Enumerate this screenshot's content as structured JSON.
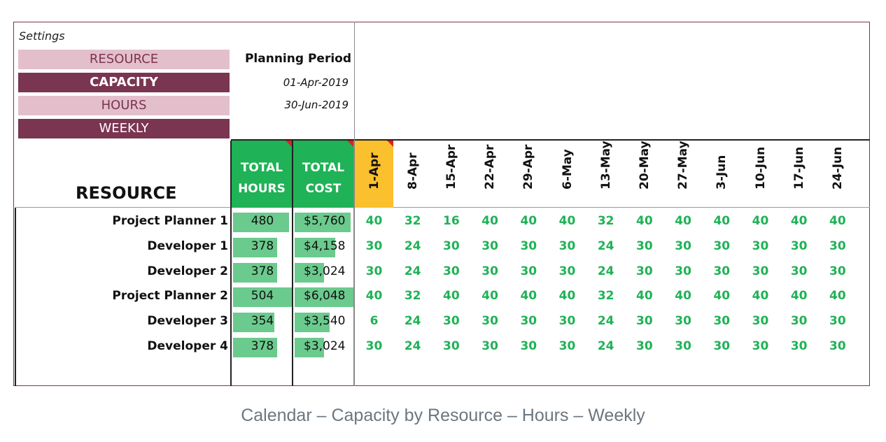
{
  "settings": {
    "label": "Settings",
    "buttons": [
      "RESOURCE",
      "CAPACITY",
      "HOURS",
      "WEEKLY"
    ]
  },
  "planning": {
    "title": "Planning Period",
    "start": "01-Apr-2019",
    "end": "30-Jun-2019"
  },
  "table": {
    "resource_header": "RESOURCE",
    "total_hours_header": [
      "TOTAL",
      "HOURS"
    ],
    "total_cost_header": [
      "TOTAL",
      "COST"
    ],
    "weeks": [
      "1-Apr",
      "8-Apr",
      "15-Apr",
      "22-Apr",
      "29-Apr",
      "6-May",
      "13-May",
      "20-May",
      "27-May",
      "3-Jun",
      "10-Jun",
      "17-Jun",
      "24-Jun"
    ],
    "rows": [
      {
        "name": "Project Planner 1",
        "hours": "480",
        "cost": "$5,760",
        "hours_frac": 0.95,
        "cost_frac": 0.95,
        "weekly": [
          "40",
          "32",
          "16",
          "40",
          "40",
          "40",
          "32",
          "40",
          "40",
          "40",
          "40",
          "40",
          "40"
        ]
      },
      {
        "name": "Developer 1",
        "hours": "378",
        "cost": "$4,158",
        "hours_frac": 0.75,
        "cost_frac": 0.69,
        "weekly": [
          "30",
          "24",
          "30",
          "30",
          "30",
          "30",
          "24",
          "30",
          "30",
          "30",
          "30",
          "30",
          "30"
        ]
      },
      {
        "name": "Developer 2",
        "hours": "378",
        "cost": "$3,024",
        "hours_frac": 0.75,
        "cost_frac": 0.5,
        "weekly": [
          "30",
          "24",
          "30",
          "30",
          "30",
          "30",
          "24",
          "30",
          "30",
          "30",
          "30",
          "30",
          "30"
        ]
      },
      {
        "name": "Project Planner 2",
        "hours": "504",
        "cost": "$6,048",
        "hours_frac": 1.0,
        "cost_frac": 1.0,
        "weekly": [
          "40",
          "32",
          "40",
          "40",
          "40",
          "40",
          "32",
          "40",
          "40",
          "40",
          "40",
          "40",
          "40"
        ]
      },
      {
        "name": "Developer 3",
        "hours": "354",
        "cost": "$3,540",
        "hours_frac": 0.7,
        "cost_frac": 0.59,
        "weekly": [
          "6",
          "24",
          "30",
          "30",
          "30",
          "30",
          "24",
          "30",
          "30",
          "30",
          "30",
          "30",
          "30"
        ]
      },
      {
        "name": "Developer 4",
        "hours": "378",
        "cost": "$3,024",
        "hours_frac": 0.75,
        "cost_frac": 0.5,
        "weekly": [
          "30",
          "24",
          "30",
          "30",
          "30",
          "30",
          "24",
          "30",
          "30",
          "30",
          "30",
          "30",
          "30"
        ]
      }
    ],
    "selected_week_index": 0
  },
  "caption": "Calendar – Capacity by Resource – Hours – Weekly",
  "colors": {
    "accent_dark": "#7a3550",
    "accent_light": "#e3bfcb",
    "green_header": "#1fb256",
    "bar_green": "#6bca8d",
    "selected_week": "#fbc02d",
    "value_green": "#1fb256"
  }
}
